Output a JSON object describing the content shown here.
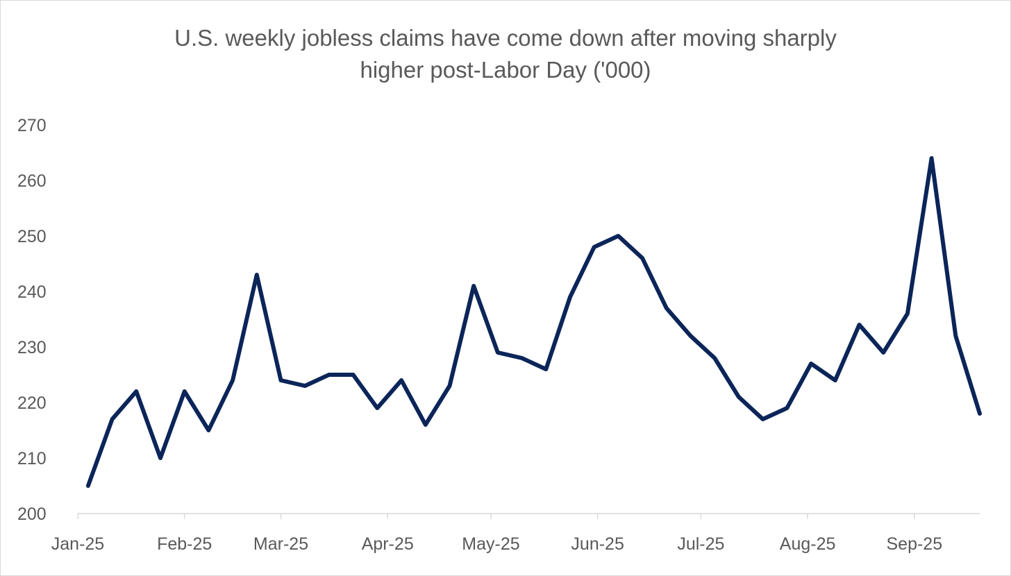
{
  "chart_data": {
    "type": "line",
    "title_lines": [
      "U.S. weekly jobless claims have come down after moving sharply",
      "higher post-Labor Day ('000)"
    ],
    "xlabel": "",
    "ylabel": "",
    "ylim": [
      200,
      270
    ],
    "yticks": [
      200,
      210,
      220,
      230,
      240,
      250,
      260,
      270
    ],
    "grid": false,
    "legend": "none",
    "x_axis": {
      "start": "2025-01-01",
      "end": "2025-09-20",
      "tick_dates": [
        "2025-01-01",
        "2025-02-01",
        "2025-03-01",
        "2025-04-01",
        "2025-05-01",
        "2025-06-01",
        "2025-07-01",
        "2025-08-01",
        "2025-09-01"
      ],
      "tick_labels": [
        "Jan-25",
        "Feb-25",
        "Mar-25",
        "Apr-25",
        "May-25",
        "Jun-25",
        "Jul-25",
        "Aug-25",
        "Sep-25"
      ]
    },
    "series": [
      {
        "color": "#0b2559",
        "x": [
          "2025-01-04",
          "2025-01-11",
          "2025-01-18",
          "2025-01-25",
          "2025-02-01",
          "2025-02-08",
          "2025-02-15",
          "2025-02-22",
          "2025-03-01",
          "2025-03-08",
          "2025-03-15",
          "2025-03-22",
          "2025-03-29",
          "2025-04-05",
          "2025-04-12",
          "2025-04-19",
          "2025-04-26",
          "2025-05-03",
          "2025-05-10",
          "2025-05-17",
          "2025-05-24",
          "2025-05-31",
          "2025-06-07",
          "2025-06-14",
          "2025-06-21",
          "2025-06-28",
          "2025-07-05",
          "2025-07-12",
          "2025-07-19",
          "2025-07-26",
          "2025-08-02",
          "2025-08-09",
          "2025-08-16",
          "2025-08-23",
          "2025-08-30",
          "2025-09-06",
          "2025-09-13",
          "2025-09-20"
        ],
        "values": [
          205,
          217,
          222,
          210,
          222,
          215,
          224,
          243,
          224,
          223,
          225,
          225,
          219,
          224,
          216,
          223,
          241,
          229,
          228,
          226,
          239,
          248,
          250,
          246,
          237,
          232,
          228,
          221,
          217,
          219,
          227,
          224,
          234,
          229,
          236,
          264,
          232,
          218
        ]
      }
    ]
  }
}
